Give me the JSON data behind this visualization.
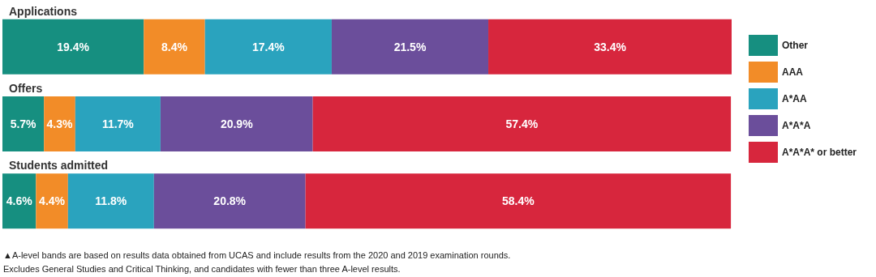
{
  "chart_data": {
    "type": "bar",
    "orientation": "horizontal",
    "stacked": true,
    "categories": [
      "Applications",
      "Offers",
      "Students admitted"
    ],
    "series": [
      {
        "name": "Other",
        "color": "#168f80",
        "values": [
          19.4,
          5.7,
          4.6
        ],
        "value_labels": [
          "19.4%",
          "5.7%",
          "4.6%"
        ]
      },
      {
        "name": "AAA",
        "color": "#f28c28",
        "values": [
          8.4,
          4.3,
          4.4
        ],
        "value_labels": [
          "8.4%",
          "4.3%",
          "4.4%"
        ]
      },
      {
        "name": "A*AA",
        "color": "#2aa3be",
        "values": [
          17.4,
          11.7,
          11.8
        ],
        "value_labels": [
          "17.4%",
          "11.7%",
          "11.8%"
        ]
      },
      {
        "name": "A*A*A",
        "color": "#6b4e9b",
        "values": [
          21.5,
          20.9,
          20.8
        ],
        "value_labels": [
          "21.5%",
          "20.9%",
          "20.8%"
        ]
      },
      {
        "name": "A*A*A* or better",
        "color": "#d7263d",
        "values": [
          33.4,
          57.4,
          58.4
        ],
        "value_labels": [
          "33.4%",
          "57.4%",
          "58.4%"
        ]
      }
    ],
    "legend": "right",
    "annotations": [
      "▲A-level bands are based on results data obtained from UCAS and include results from the 2020 and 2019 examination rounds.",
      "Excludes General Studies and Critical Thinking, and candidates with fewer than three A-level results."
    ]
  }
}
